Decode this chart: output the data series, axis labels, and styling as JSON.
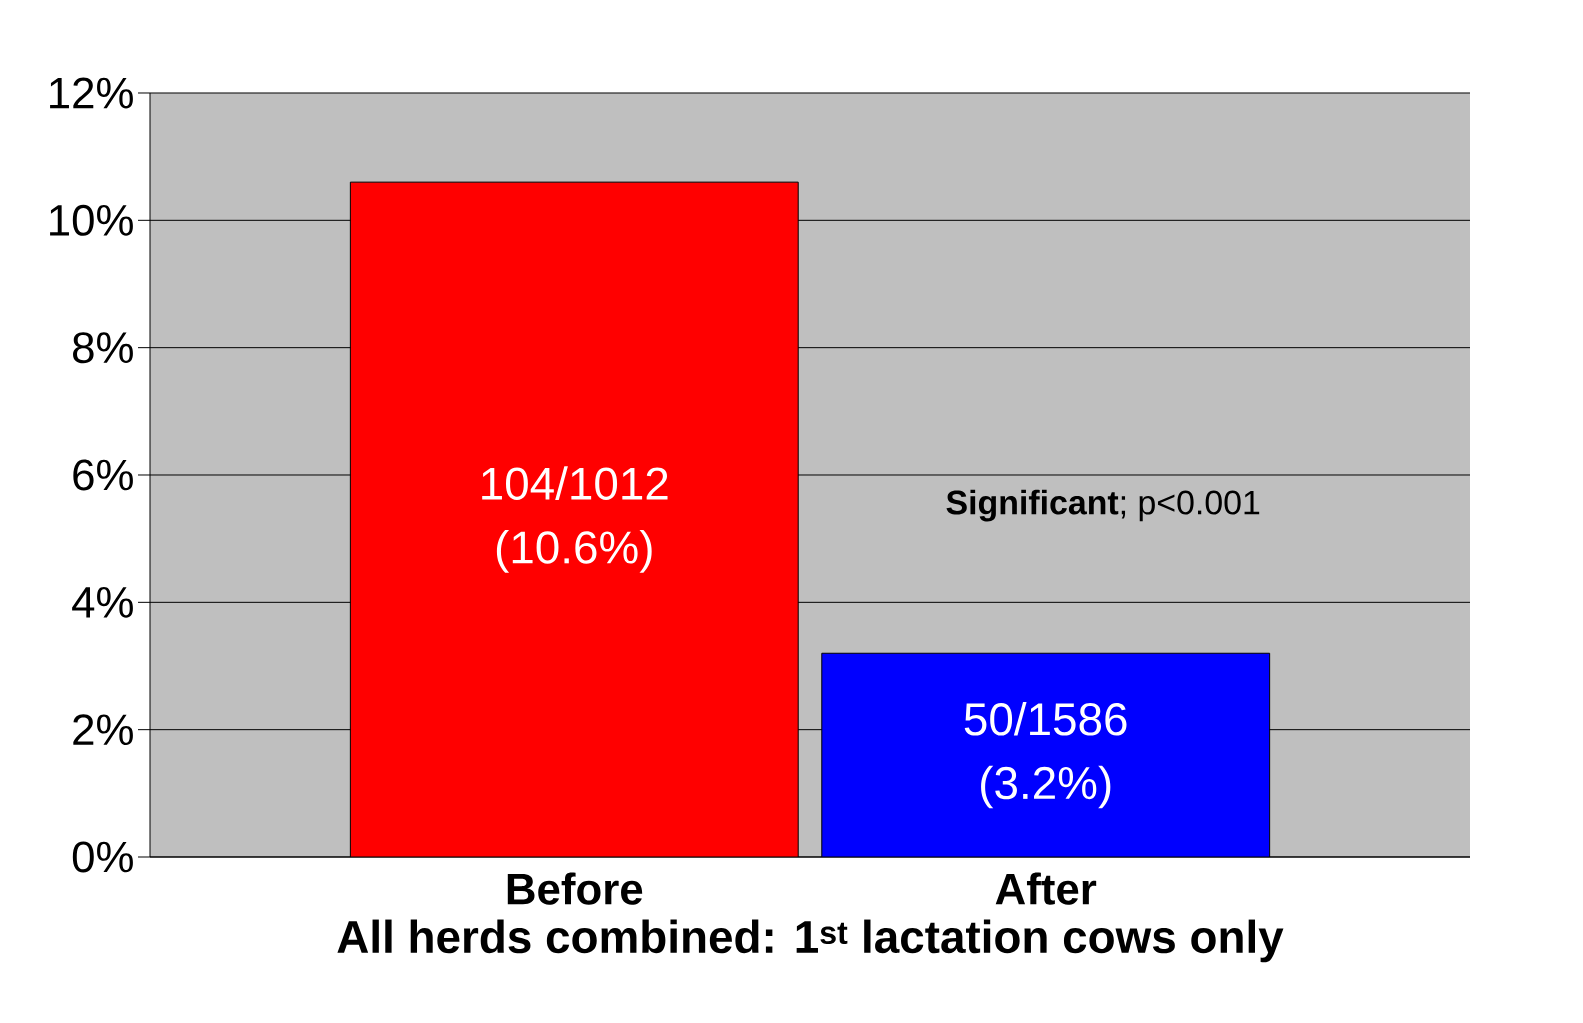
{
  "chart_data": {
    "type": "bar",
    "categories": [
      "Before",
      "After"
    ],
    "values": [
      10.6,
      3.2
    ],
    "colors": [
      "#ff0000",
      "#0000ff"
    ],
    "value_labels": [
      "104/1012 (10.6%)",
      "50/1586 (3.2%)"
    ],
    "xlabel": "All herds combined: 1$^{st}$ lactation cows only",
    "annotations": [
      "**Significant**; p<0.001"
    ],
    "ylim": [
      0,
      12
    ],
    "yticks": [
      {
        "value": 0,
        "label": "0%"
      },
      {
        "value": 2,
        "label": "2%"
      },
      {
        "value": 4,
        "label": "4%"
      },
      {
        "value": 6,
        "label": "6%"
      },
      {
        "value": 8,
        "label": "8%"
      },
      {
        "value": 10,
        "label": "10%"
      },
      {
        "value": 12,
        "label": "12%"
      }
    ],
    "grid": "y"
  }
}
